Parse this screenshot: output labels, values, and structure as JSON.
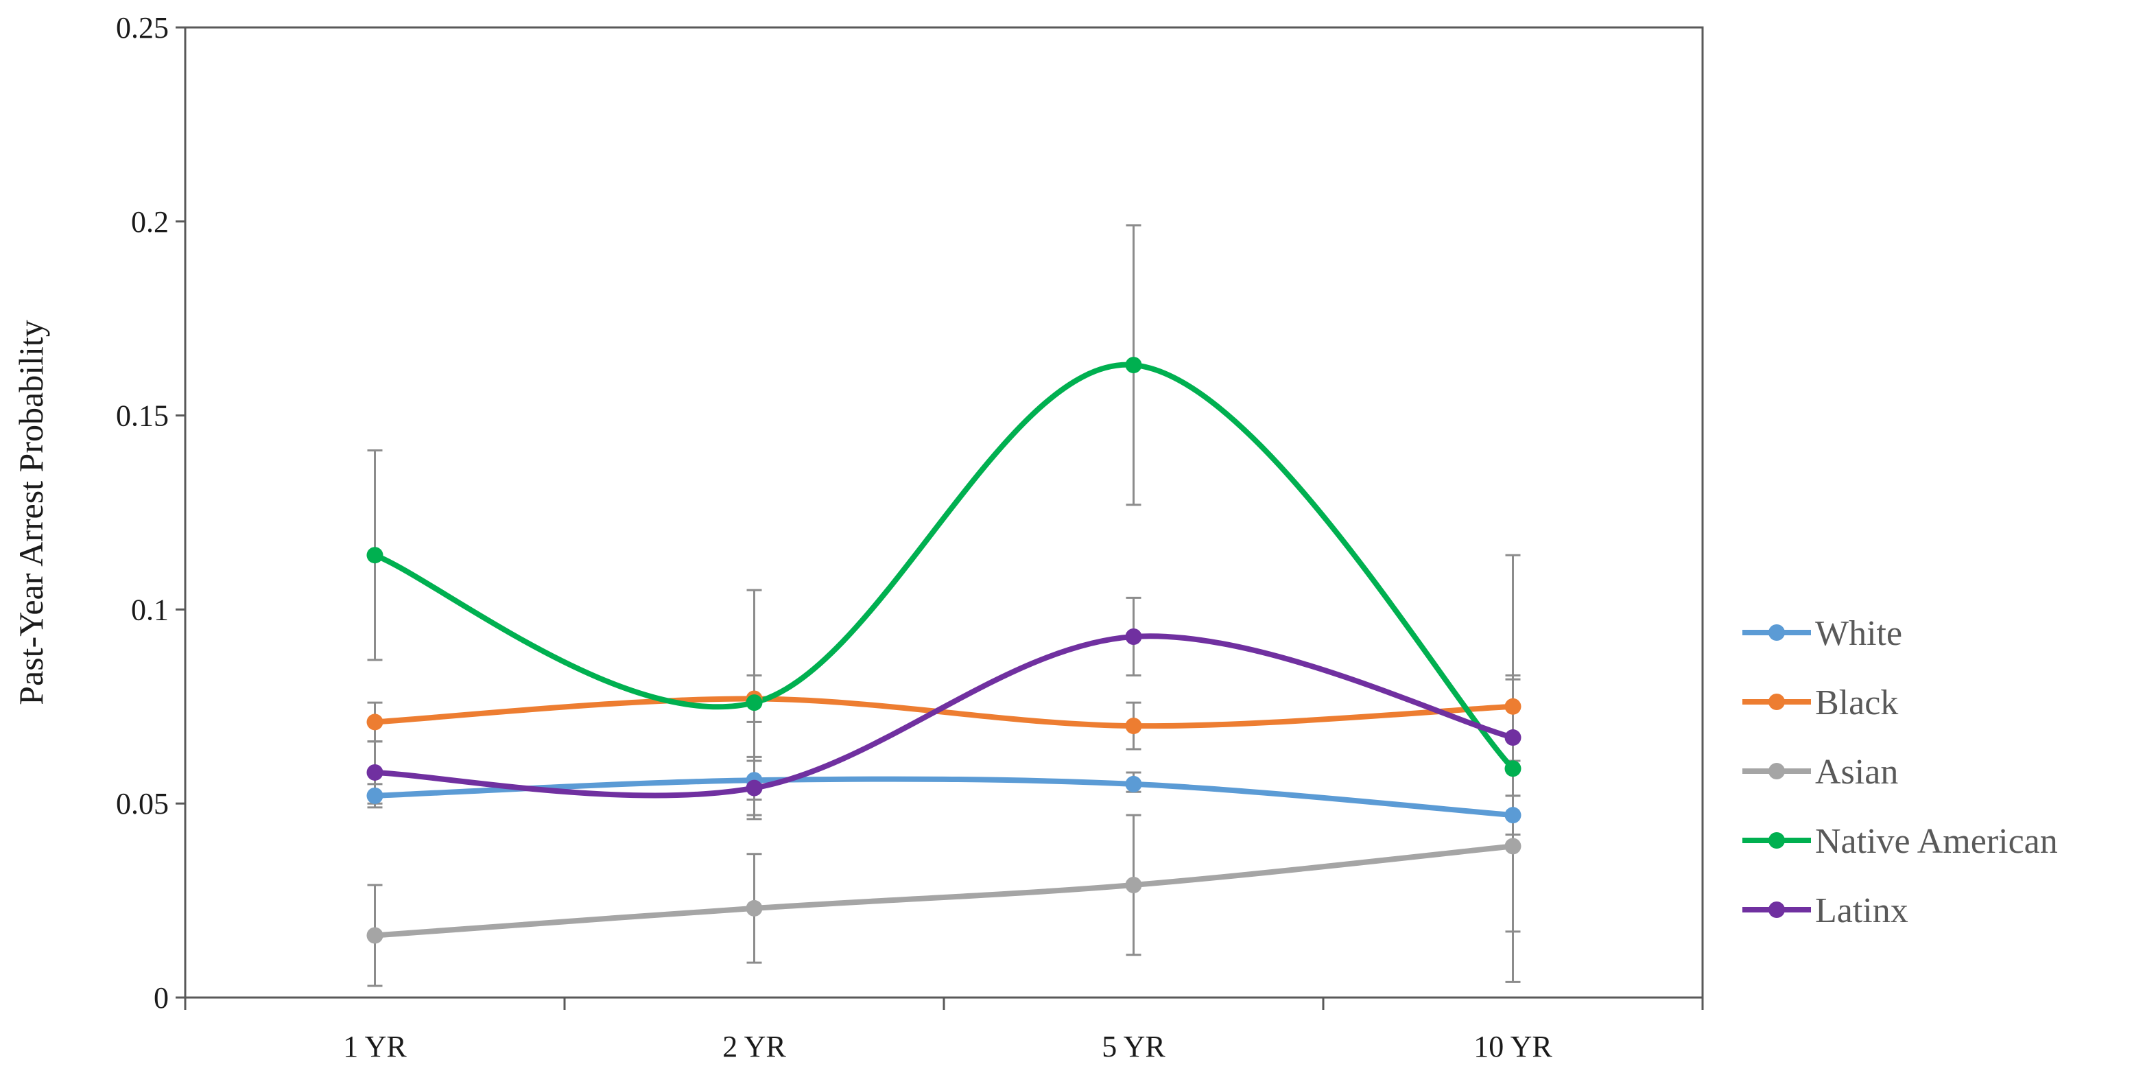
{
  "chart_data": {
    "type": "line",
    "title": "",
    "xlabel": "",
    "ylabel": "Past-Year Arrest Probability",
    "ylim": [
      0,
      0.25
    ],
    "yticks": [
      0,
      0.05,
      0.1,
      0.15,
      0.2,
      0.25
    ],
    "ytick_labels": [
      "0",
      "0.05",
      "0.1",
      "0.15",
      "0.2",
      "0.25"
    ],
    "categories": [
      "1 YR",
      "2 YR",
      "5 YR",
      "10 YR"
    ],
    "grid": false,
    "legend_position": "right",
    "smoothed": true,
    "series": [
      {
        "name": "White",
        "color": "#5b9bd5",
        "values": [
          0.052,
          0.056,
          0.055,
          0.047
        ],
        "err_low": [
          0.049,
          0.051,
          0.053,
          0.042
        ],
        "err_high": [
          0.055,
          0.061,
          0.058,
          0.052
        ]
      },
      {
        "name": "Black",
        "color": "#ed7d31",
        "values": [
          0.071,
          0.077,
          0.07,
          0.075
        ],
        "err_low": [
          0.066,
          0.071,
          0.064,
          0.067
        ],
        "err_high": [
          0.076,
          0.083,
          0.076,
          0.083
        ]
      },
      {
        "name": "Asian",
        "color": "#a5a5a5",
        "values": [
          0.016,
          0.023,
          0.029,
          0.039
        ],
        "err_low": [
          0.003,
          0.009,
          0.011,
          0.017
        ],
        "err_high": [
          0.029,
          0.037,
          0.047,
          0.061
        ]
      },
      {
        "name": "Native American",
        "color": "#00b050",
        "values": [
          0.114,
          0.076,
          0.163,
          0.059
        ],
        "err_low": [
          0.087,
          0.047,
          0.127,
          0.004
        ],
        "err_high": [
          0.141,
          0.105,
          0.199,
          0.114
        ]
      },
      {
        "name": "Latinx",
        "color": "#7030a0",
        "values": [
          0.058,
          0.054,
          0.093,
          0.067
        ],
        "err_low": [
          0.05,
          0.046,
          0.083,
          0.052
        ],
        "err_high": [
          0.066,
          0.062,
          0.103,
          0.082
        ]
      }
    ]
  }
}
